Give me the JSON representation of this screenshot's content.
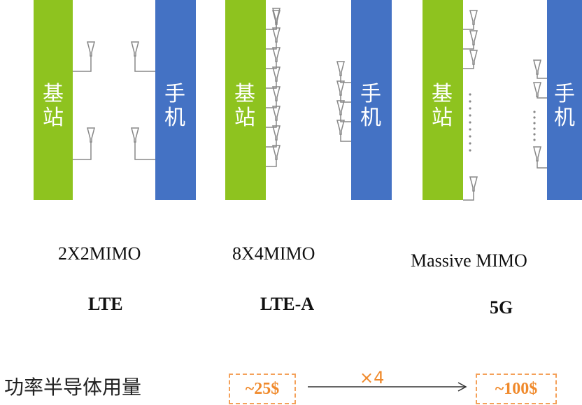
{
  "colors": {
    "base_station": "#8ec31f",
    "phone": "#4472c4",
    "antenna": "#888888",
    "cost": "#f08a2c"
  },
  "columns": [
    {
      "base_label_1": "基",
      "base_label_2": "站",
      "phone_label_1": "手",
      "phone_label_2": "机",
      "mimo": "2X2MIMO",
      "generation": "LTE"
    },
    {
      "base_label_1": "基",
      "base_label_2": "站",
      "phone_label_1": "手",
      "phone_label_2": "机",
      "mimo": "8X4MIMO",
      "generation": "LTE-A"
    },
    {
      "base_label_1": "基",
      "base_label_2": "站",
      "phone_label_1": "手",
      "phone_label_2": "机",
      "mimo": "Massive MIMO",
      "generation": "5G"
    }
  ],
  "cost": {
    "label": "功率半导体用量",
    "from": "~25$",
    "to": "~100$",
    "multiplier": "×4"
  }
}
